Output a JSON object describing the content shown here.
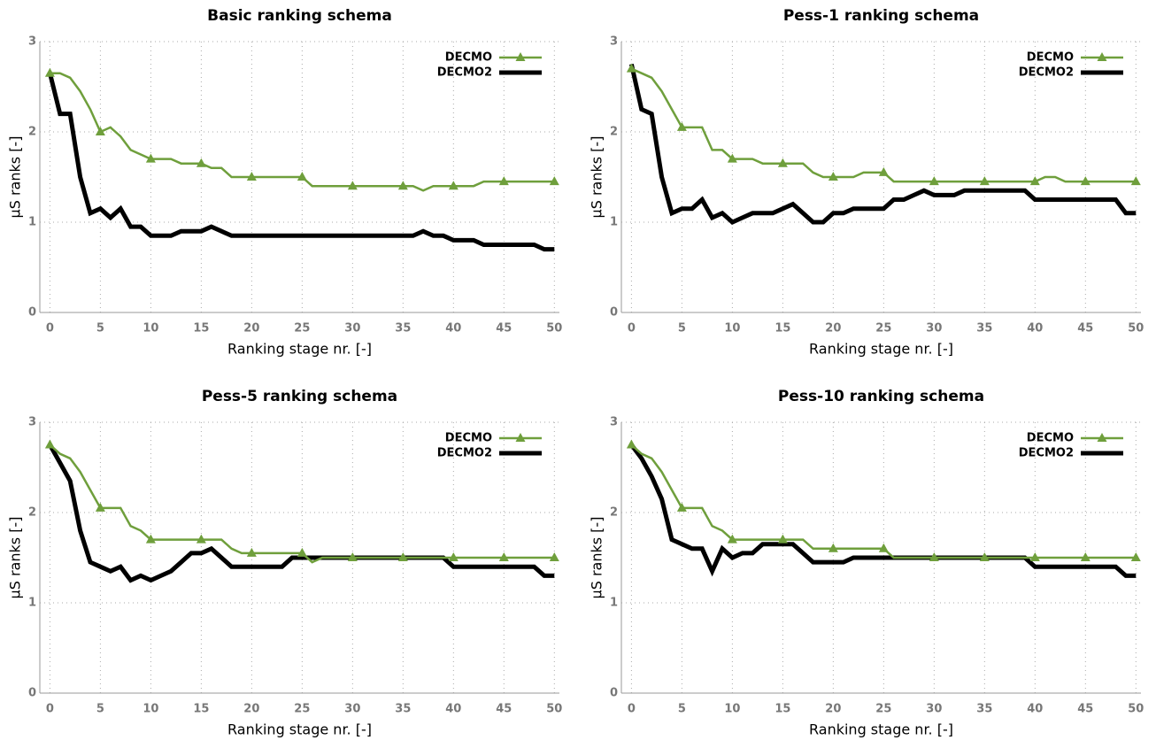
{
  "chart_data": [
    {
      "type": "line",
      "title": "Basic ranking schema",
      "x_label": "Ranking stage nr. [-]",
      "y_label": "μS ranks [-]",
      "x": [
        0,
        1,
        2,
        3,
        4,
        5,
        6,
        7,
        8,
        9,
        10,
        11,
        12,
        13,
        14,
        15,
        16,
        17,
        18,
        19,
        20,
        21,
        22,
        23,
        24,
        25,
        26,
        27,
        28,
        29,
        30,
        31,
        32,
        33,
        34,
        35,
        36,
        37,
        38,
        39,
        40,
        41,
        42,
        43,
        44,
        45,
        46,
        47,
        48,
        49,
        50
      ],
      "series": [
        {
          "name": "DECMO",
          "color": "#6f9f3c",
          "marker": "triangle",
          "values": [
            2.65,
            2.65,
            2.6,
            2.45,
            2.25,
            2.0,
            2.05,
            1.95,
            1.8,
            1.75,
            1.7,
            1.7,
            1.7,
            1.65,
            1.65,
            1.65,
            1.6,
            1.6,
            1.5,
            1.5,
            1.5,
            1.5,
            1.5,
            1.5,
            1.5,
            1.5,
            1.4,
            1.4,
            1.4,
            1.4,
            1.4,
            1.4,
            1.4,
            1.4,
            1.4,
            1.4,
            1.4,
            1.35,
            1.4,
            1.4,
            1.4,
            1.4,
            1.4,
            1.45,
            1.45,
            1.45,
            1.45,
            1.45,
            1.45,
            1.45,
            1.45
          ]
        },
        {
          "name": "DECMO2",
          "color": "#000000",
          "values": [
            2.65,
            2.2,
            2.2,
            1.5,
            1.1,
            1.15,
            1.05,
            1.15,
            0.95,
            0.95,
            0.85,
            0.85,
            0.85,
            0.9,
            0.9,
            0.9,
            0.95,
            0.9,
            0.85,
            0.85,
            0.85,
            0.85,
            0.85,
            0.85,
            0.85,
            0.85,
            0.85,
            0.85,
            0.85,
            0.85,
            0.85,
            0.85,
            0.85,
            0.85,
            0.85,
            0.85,
            0.85,
            0.9,
            0.85,
            0.85,
            0.8,
            0.8,
            0.8,
            0.75,
            0.75,
            0.75,
            0.75,
            0.75,
            0.75,
            0.7,
            0.7
          ]
        }
      ],
      "xlim": [
        -1,
        50.5
      ],
      "xticks": [
        0,
        5,
        10,
        15,
        20,
        25,
        30,
        35,
        40,
        45,
        50
      ],
      "ylim": [
        0,
        3
      ],
      "yticks": [
        0,
        1,
        2,
        3
      ],
      "grid": true,
      "legend": "top-right"
    },
    {
      "type": "line",
      "title": "Pess-1 ranking schema",
      "x_label": "Ranking stage nr. [-]",
      "y_label": "μS ranks [-]",
      "x": [
        0,
        1,
        2,
        3,
        4,
        5,
        6,
        7,
        8,
        9,
        10,
        11,
        12,
        13,
        14,
        15,
        16,
        17,
        18,
        19,
        20,
        21,
        22,
        23,
        24,
        25,
        26,
        27,
        28,
        29,
        30,
        31,
        32,
        33,
        34,
        35,
        36,
        37,
        38,
        39,
        40,
        41,
        42,
        43,
        44,
        45,
        46,
        47,
        48,
        49,
        50
      ],
      "series": [
        {
          "name": "DECMO",
          "color": "#6f9f3c",
          "marker": "triangle",
          "values": [
            2.7,
            2.65,
            2.6,
            2.45,
            2.25,
            2.05,
            2.05,
            2.05,
            1.8,
            1.8,
            1.7,
            1.7,
            1.7,
            1.65,
            1.65,
            1.65,
            1.65,
            1.65,
            1.55,
            1.5,
            1.5,
            1.5,
            1.5,
            1.55,
            1.55,
            1.55,
            1.45,
            1.45,
            1.45,
            1.45,
            1.45,
            1.45,
            1.45,
            1.45,
            1.45,
            1.45,
            1.45,
            1.45,
            1.45,
            1.45,
            1.45,
            1.5,
            1.5,
            1.45,
            1.45,
            1.45,
            1.45,
            1.45,
            1.45,
            1.45,
            1.45
          ]
        },
        {
          "name": "DECMO2",
          "color": "#000000",
          "values": [
            2.75,
            2.25,
            2.2,
            1.5,
            1.1,
            1.15,
            1.15,
            1.25,
            1.05,
            1.1,
            1.0,
            1.05,
            1.1,
            1.1,
            1.1,
            1.15,
            1.2,
            1.1,
            1.0,
            1.0,
            1.1,
            1.1,
            1.15,
            1.15,
            1.15,
            1.15,
            1.25,
            1.25,
            1.3,
            1.35,
            1.3,
            1.3,
            1.3,
            1.35,
            1.35,
            1.35,
            1.35,
            1.35,
            1.35,
            1.35,
            1.25,
            1.25,
            1.25,
            1.25,
            1.25,
            1.25,
            1.25,
            1.25,
            1.25,
            1.1,
            1.1
          ]
        }
      ],
      "xlim": [
        -1,
        50.5
      ],
      "xticks": [
        0,
        5,
        10,
        15,
        20,
        25,
        30,
        35,
        40,
        45,
        50
      ],
      "ylim": [
        0,
        3
      ],
      "yticks": [
        0,
        1,
        2,
        3
      ],
      "grid": true,
      "legend": "top-right"
    },
    {
      "type": "line",
      "title": "Pess-5 ranking schema",
      "x_label": "Ranking stage nr. [-]",
      "y_label": "μS ranks [-]",
      "x": [
        0,
        1,
        2,
        3,
        4,
        5,
        6,
        7,
        8,
        9,
        10,
        11,
        12,
        13,
        14,
        15,
        16,
        17,
        18,
        19,
        20,
        21,
        22,
        23,
        24,
        25,
        26,
        27,
        28,
        29,
        30,
        31,
        32,
        33,
        34,
        35,
        36,
        37,
        38,
        39,
        40,
        41,
        42,
        43,
        44,
        45,
        46,
        47,
        48,
        49,
        50
      ],
      "series": [
        {
          "name": "DECMO",
          "color": "#6f9f3c",
          "marker": "triangle",
          "values": [
            2.75,
            2.65,
            2.6,
            2.45,
            2.25,
            2.05,
            2.05,
            2.05,
            1.85,
            1.8,
            1.7,
            1.7,
            1.7,
            1.7,
            1.7,
            1.7,
            1.7,
            1.7,
            1.6,
            1.55,
            1.55,
            1.55,
            1.55,
            1.55,
            1.55,
            1.55,
            1.45,
            1.5,
            1.5,
            1.5,
            1.5,
            1.5,
            1.5,
            1.5,
            1.5,
            1.5,
            1.5,
            1.5,
            1.5,
            1.5,
            1.5,
            1.5,
            1.5,
            1.5,
            1.5,
            1.5,
            1.5,
            1.5,
            1.5,
            1.5,
            1.5
          ]
        },
        {
          "name": "DECMO2",
          "color": "#000000",
          "values": [
            2.75,
            2.55,
            2.35,
            1.8,
            1.45,
            1.4,
            1.35,
            1.4,
            1.25,
            1.3,
            1.25,
            1.3,
            1.35,
            1.45,
            1.55,
            1.55,
            1.6,
            1.5,
            1.4,
            1.4,
            1.4,
            1.4,
            1.4,
            1.4,
            1.5,
            1.5,
            1.5,
            1.5,
            1.5,
            1.5,
            1.5,
            1.5,
            1.5,
            1.5,
            1.5,
            1.5,
            1.5,
            1.5,
            1.5,
            1.5,
            1.4,
            1.4,
            1.4,
            1.4,
            1.4,
            1.4,
            1.4,
            1.4,
            1.4,
            1.3,
            1.3
          ]
        }
      ],
      "xlim": [
        -1,
        50.5
      ],
      "xticks": [
        0,
        5,
        10,
        15,
        20,
        25,
        30,
        35,
        40,
        45,
        50
      ],
      "ylim": [
        0,
        3
      ],
      "yticks": [
        0,
        1,
        2,
        3
      ],
      "grid": true,
      "legend": "top-right"
    },
    {
      "type": "line",
      "title": "Pess-10 ranking schema",
      "x_label": "Ranking stage nr. [-]",
      "y_label": "μS ranks [-]",
      "x": [
        0,
        1,
        2,
        3,
        4,
        5,
        6,
        7,
        8,
        9,
        10,
        11,
        12,
        13,
        14,
        15,
        16,
        17,
        18,
        19,
        20,
        21,
        22,
        23,
        24,
        25,
        26,
        27,
        28,
        29,
        30,
        31,
        32,
        33,
        34,
        35,
        36,
        37,
        38,
        39,
        40,
        41,
        42,
        43,
        44,
        45,
        46,
        47,
        48,
        49,
        50
      ],
      "series": [
        {
          "name": "DECMO",
          "color": "#6f9f3c",
          "marker": "triangle",
          "values": [
            2.75,
            2.65,
            2.6,
            2.45,
            2.25,
            2.05,
            2.05,
            2.05,
            1.85,
            1.8,
            1.7,
            1.7,
            1.7,
            1.7,
            1.7,
            1.7,
            1.7,
            1.7,
            1.6,
            1.6,
            1.6,
            1.6,
            1.6,
            1.6,
            1.6,
            1.6,
            1.5,
            1.5,
            1.5,
            1.5,
            1.5,
            1.5,
            1.5,
            1.5,
            1.5,
            1.5,
            1.5,
            1.5,
            1.5,
            1.5,
            1.5,
            1.5,
            1.5,
            1.5,
            1.5,
            1.5,
            1.5,
            1.5,
            1.5,
            1.5,
            1.5
          ]
        },
        {
          "name": "DECMO2",
          "color": "#000000",
          "values": [
            2.75,
            2.6,
            2.4,
            2.15,
            1.7,
            1.65,
            1.6,
            1.6,
            1.35,
            1.6,
            1.5,
            1.55,
            1.55,
            1.65,
            1.65,
            1.65,
            1.65,
            1.55,
            1.45,
            1.45,
            1.45,
            1.45,
            1.5,
            1.5,
            1.5,
            1.5,
            1.5,
            1.5,
            1.5,
            1.5,
            1.5,
            1.5,
            1.5,
            1.5,
            1.5,
            1.5,
            1.5,
            1.5,
            1.5,
            1.5,
            1.4,
            1.4,
            1.4,
            1.4,
            1.4,
            1.4,
            1.4,
            1.4,
            1.4,
            1.3,
            1.3
          ]
        }
      ],
      "xlim": [
        -1,
        50.5
      ],
      "xticks": [
        0,
        5,
        10,
        15,
        20,
        25,
        30,
        35,
        40,
        45,
        50
      ],
      "ylim": [
        0,
        3
      ],
      "yticks": [
        0,
        1,
        2,
        3
      ],
      "grid": true,
      "legend": "top-right"
    }
  ]
}
